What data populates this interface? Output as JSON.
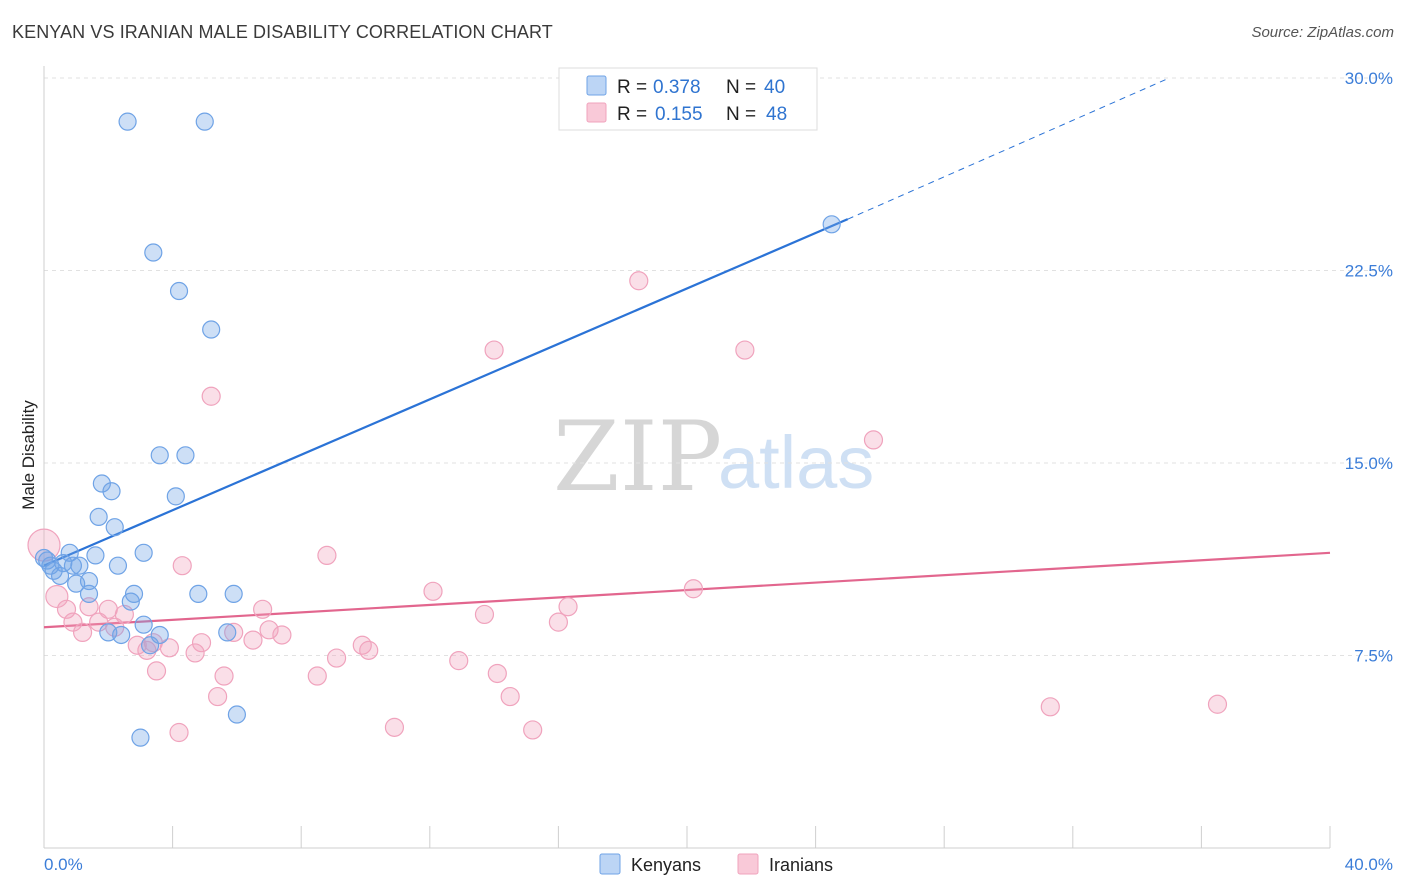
{
  "title": "KENYAN VS IRANIAN MALE DISABILITY CORRELATION CHART",
  "source": "Source: ZipAtlas.com",
  "watermark": {
    "zip": "ZIP",
    "atlas": "atlas"
  },
  "chart_data": {
    "type": "scatter",
    "ylabel": "Male Disability",
    "xlabel": "",
    "xlim": [
      0,
      40
    ],
    "ylim": [
      0,
      30
    ],
    "x_tick_labels": [
      "0.0%",
      "40.0%"
    ],
    "y_ticks": [
      7.5,
      15.0,
      22.5,
      30.0
    ],
    "y_tick_labels": [
      "7.5%",
      "15.0%",
      "22.5%",
      "30.0%"
    ],
    "grid": true,
    "legend_position": "top-center",
    "colors": {
      "kenyans": "#6fa3e6",
      "kenyans_line": "#2b73d6",
      "iranians": "#f0a3bd",
      "iranians_line": "#e2668e"
    },
    "legend": [
      {
        "r_label": "R =",
        "r": "0.378",
        "n_label": "N =",
        "n": "40"
      },
      {
        "r_label": "R =",
        "r": "0.155",
        "n_label": "N =",
        "n": "48"
      }
    ],
    "series": [
      {
        "name": "Kenyans",
        "trend": {
          "x0": 0,
          "y0": 11.0,
          "x1": 25,
          "y1": 24.5,
          "dashed_to_x": 35,
          "dashed_to_y": 30.0
        },
        "points": [
          [
            2.6,
            28.3
          ],
          [
            5.0,
            28.3
          ],
          [
            3.4,
            23.2
          ],
          [
            4.2,
            21.7
          ],
          [
            5.2,
            20.2
          ],
          [
            24.5,
            24.3
          ],
          [
            3.6,
            15.3
          ],
          [
            4.4,
            15.3
          ],
          [
            1.8,
            14.2
          ],
          [
            2.1,
            13.9
          ],
          [
            4.1,
            13.7
          ],
          [
            1.7,
            12.9
          ],
          [
            2.2,
            12.5
          ],
          [
            0.0,
            11.3
          ],
          [
            0.8,
            11.5
          ],
          [
            1.6,
            11.4
          ],
          [
            3.1,
            11.5
          ],
          [
            0.6,
            11.1
          ],
          [
            0.9,
            11.0
          ],
          [
            1.1,
            11.0
          ],
          [
            0.2,
            11.0
          ],
          [
            2.3,
            11.0
          ],
          [
            0.3,
            10.8
          ],
          [
            0.5,
            10.6
          ],
          [
            1.4,
            10.4
          ],
          [
            1.0,
            10.3
          ],
          [
            1.4,
            9.9
          ],
          [
            2.8,
            9.9
          ],
          [
            4.8,
            9.9
          ],
          [
            5.9,
            9.9
          ],
          [
            2.7,
            9.6
          ],
          [
            3.1,
            8.7
          ],
          [
            2.0,
            8.4
          ],
          [
            2.4,
            8.3
          ],
          [
            3.6,
            8.3
          ],
          [
            5.7,
            8.4
          ],
          [
            3.3,
            7.9
          ],
          [
            6.0,
            5.2
          ],
          [
            3.0,
            4.3
          ],
          [
            0.1,
            11.2
          ]
        ]
      },
      {
        "name": "Iranians",
        "trend": {
          "x0": 0,
          "y0": 8.6,
          "x1": 40,
          "y1": 11.5
        },
        "points": [
          [
            0.0,
            11.8
          ],
          [
            0.4,
            9.8
          ],
          [
            0.7,
            9.3
          ],
          [
            0.9,
            8.8
          ],
          [
            1.2,
            8.4
          ],
          [
            1.4,
            9.4
          ],
          [
            1.7,
            8.8
          ],
          [
            2.0,
            9.3
          ],
          [
            2.2,
            8.6
          ],
          [
            2.5,
            9.1
          ],
          [
            2.9,
            7.9
          ],
          [
            3.2,
            7.7
          ],
          [
            3.4,
            8.0
          ],
          [
            3.5,
            6.9
          ],
          [
            3.9,
            7.8
          ],
          [
            4.2,
            4.5
          ],
          [
            4.3,
            11.0
          ],
          [
            4.7,
            7.6
          ],
          [
            4.9,
            8.0
          ],
          [
            5.2,
            17.6
          ],
          [
            5.4,
            5.9
          ],
          [
            5.6,
            6.7
          ],
          [
            5.9,
            8.4
          ],
          [
            6.5,
            8.1
          ],
          [
            6.8,
            9.3
          ],
          [
            7.0,
            8.5
          ],
          [
            7.4,
            8.3
          ],
          [
            8.5,
            6.7
          ],
          [
            8.8,
            11.4
          ],
          [
            9.1,
            7.4
          ],
          [
            9.9,
            7.9
          ],
          [
            10.1,
            7.7
          ],
          [
            10.9,
            4.7
          ],
          [
            12.1,
            10.0
          ],
          [
            12.9,
            7.3
          ],
          [
            13.7,
            9.1
          ],
          [
            14.1,
            6.8
          ],
          [
            14.0,
            19.4
          ],
          [
            14.5,
            5.9
          ],
          [
            15.2,
            4.6
          ],
          [
            16.0,
            8.8
          ],
          [
            16.3,
            9.4
          ],
          [
            18.5,
            22.1
          ],
          [
            20.2,
            10.1
          ],
          [
            21.8,
            19.4
          ],
          [
            25.8,
            15.9
          ],
          [
            31.3,
            5.5
          ],
          [
            36.5,
            5.6
          ]
        ]
      }
    ]
  }
}
